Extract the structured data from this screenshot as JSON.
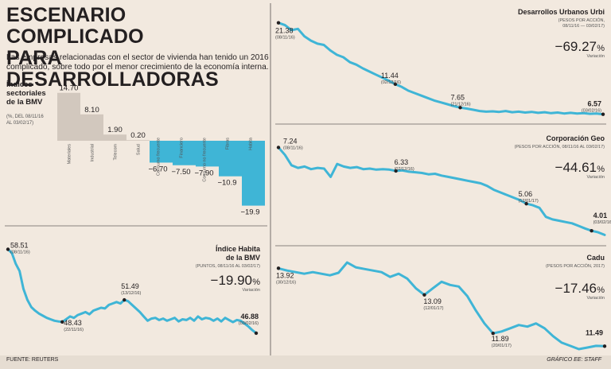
{
  "title": "ESCENARIO COMPLICADO\nPARA DESARROLLADORAS",
  "subtitle": "Las empresas relacionadas con el sector de vivienda han tenido un 2016 complicado, sobre todo por el menor crecimiento de la economía interna.",
  "footer": {
    "source": "FUENTE: REUTERS",
    "credit": "GRÁFICO EE: STAFF"
  },
  "colors": {
    "bar_gray": "#d2c8be",
    "line_blue": "#3fb5d6",
    "bar_blue": "#3fb5d6",
    "text": "#231f20",
    "background": "#f2e9df"
  },
  "chart_data": [
    {
      "id": "indices-sectoriales",
      "type": "bar",
      "title": "Índices sectoriales de la BMV",
      "note": "(%, DEL 08/11/16 AL 03/02/17)",
      "categories": [
        "Materiales",
        "Industrial",
        "Telecom",
        "Salud",
        "Consumo frecuente",
        "Financiero",
        "Consumo no frecuente",
        "Fibras",
        "Habita"
      ],
      "values": [
        14.7,
        8.1,
        1.9,
        0.2,
        -6.7,
        -7.5,
        -7.9,
        -10.9,
        -19.9
      ],
      "value_labels": [
        "14.70",
        "8.10",
        "1.90",
        "0.20",
        "−6.70",
        "−7.50",
        "−7.90",
        "−10.9",
        "−19.9"
      ],
      "ylim": [
        -21,
        16
      ]
    },
    {
      "id": "habita",
      "type": "line",
      "title": "Índice Habita de la BMV",
      "units": "(PUNTOS, 08/11/16 AL 03/02/17)",
      "change": "−19.90",
      "change_unit": "%",
      "change_label": "Variación",
      "ylim": [
        44,
        60
      ],
      "values": [
        58.51,
        58.0,
        56.5,
        55.5,
        53.0,
        51.5,
        50.5,
        50.0,
        49.6,
        49.3,
        49.0,
        48.8,
        48.6,
        48.5,
        48.43,
        48.8,
        49.2,
        49.0,
        49.4,
        49.6,
        49.8,
        49.5,
        50.0,
        50.2,
        50.4,
        50.3,
        50.8,
        51.0,
        51.2,
        51.0,
        51.49,
        51.3,
        50.8,
        50.3,
        49.8,
        49.2,
        48.6,
        48.9,
        49.0,
        48.7,
        48.9,
        48.6,
        48.8,
        49.0,
        48.5,
        48.8,
        48.7,
        49.0,
        48.6,
        49.2,
        48.8,
        49.0,
        48.9,
        48.6,
        48.9,
        48.5,
        49.0,
        48.7,
        48.4,
        48.7,
        48.6,
        48.2,
        47.8,
        47.3,
        46.88
      ],
      "annotations": [
        {
          "index": 0,
          "value": "58.51",
          "date": "(08/11/16)"
        },
        {
          "index": 14,
          "value": "48.43",
          "date": "(22/11/16)"
        },
        {
          "index": 30,
          "value": "51.49",
          "date": "(13/12/16)"
        },
        {
          "index": 64,
          "value": "46.88",
          "date": "(03/02/16)"
        }
      ]
    },
    {
      "id": "urbi",
      "type": "line",
      "title": "Desarrollos Urbanos Urbi",
      "units": "(PESOS POR ACCIÓN, 08/11/16 — 03/02/17)",
      "change": "−69.27",
      "change_unit": "%",
      "change_label": "Variación",
      "ylim": [
        5.5,
        22.5
      ],
      "values": [
        21.38,
        21.0,
        20.2,
        20.4,
        19.2,
        18.5,
        18.0,
        17.8,
        16.9,
        16.2,
        15.8,
        15.0,
        14.6,
        14.0,
        13.5,
        13.0,
        12.5,
        12.0,
        11.44,
        11.0,
        10.4,
        10.0,
        9.6,
        9.2,
        8.8,
        8.5,
        8.2,
        7.9,
        7.65,
        7.5,
        7.3,
        7.1,
        7.0,
        7.05,
        6.95,
        7.1,
        6.9,
        7.0,
        6.85,
        6.95,
        6.8,
        6.9,
        6.75,
        6.85,
        6.7,
        6.8,
        6.7,
        6.75,
        6.65,
        6.7,
        6.57
      ],
      "annotations": [
        {
          "index": 0,
          "value": "21.38",
          "date": "(08/11/16)"
        },
        {
          "index": 18,
          "value": "11.44",
          "date": "(02/12/16)"
        },
        {
          "index": 28,
          "value": "7.65",
          "date": "(21/12/16)"
        },
        {
          "index": 50,
          "value": "6.57",
          "date": "(03/02/16)"
        }
      ]
    },
    {
      "id": "geo",
      "type": "line",
      "title": "Corporación Geo",
      "units": "(PESOS POR ACCIÓN, 08/11/16 AL 03/02/17)",
      "change": "−44.61",
      "change_unit": "%",
      "change_label": "Variación",
      "ylim": [
        3.8,
        7.5
      ],
      "values": [
        7.24,
        6.95,
        6.55,
        6.45,
        6.5,
        6.4,
        6.45,
        6.42,
        6.1,
        6.6,
        6.5,
        6.45,
        6.48,
        6.4,
        6.42,
        6.38,
        6.4,
        6.38,
        6.33,
        6.35,
        6.3,
        6.28,
        6.25,
        6.2,
        6.22,
        6.15,
        6.1,
        6.05,
        6.0,
        5.95,
        5.9,
        5.85,
        5.75,
        5.6,
        5.5,
        5.4,
        5.3,
        5.2,
        5.06,
        5.0,
        4.9,
        4.55,
        4.45,
        4.4,
        4.35,
        4.3,
        4.2,
        4.1,
        4.01,
        3.95,
        3.85
      ],
      "annotations": [
        {
          "index": 0,
          "value": "7.24",
          "date": "(08/11/16)"
        },
        {
          "index": 18,
          "value": "6.33",
          "date": "(02/12/16)"
        },
        {
          "index": 38,
          "value": "5.06",
          "date": "(12/01/17)"
        },
        {
          "index": 48,
          "value": "4.01",
          "date": "(03/02/16)"
        }
      ]
    },
    {
      "id": "cadu",
      "type": "line",
      "title": "Cadu",
      "units": "(PESOS POR ACCIÓN, 2017)",
      "change": "−17.46",
      "change_unit": "%",
      "change_label": "Variación",
      "ylim": [
        11.3,
        14.4
      ],
      "values": [
        13.92,
        13.85,
        13.8,
        13.75,
        13.8,
        13.75,
        13.7,
        13.78,
        14.1,
        13.95,
        13.9,
        13.85,
        13.8,
        13.65,
        13.75,
        13.6,
        13.3,
        13.09,
        13.3,
        13.5,
        13.4,
        13.35,
        13.05,
        12.6,
        12.2,
        11.89,
        11.95,
        12.05,
        12.15,
        12.1,
        12.2,
        12.05,
        11.8,
        11.6,
        11.5,
        11.4,
        11.45,
        11.5,
        11.49
      ],
      "annotations": [
        {
          "index": 0,
          "value": "13.92",
          "date": "(30/12/16)"
        },
        {
          "index": 17,
          "value": "13.09",
          "date": "(12/01/17)"
        },
        {
          "index": 25,
          "value": "11.89",
          "date": "(20/01/17)"
        },
        {
          "index": 38,
          "value": "11.49",
          "date": ""
        }
      ]
    }
  ]
}
